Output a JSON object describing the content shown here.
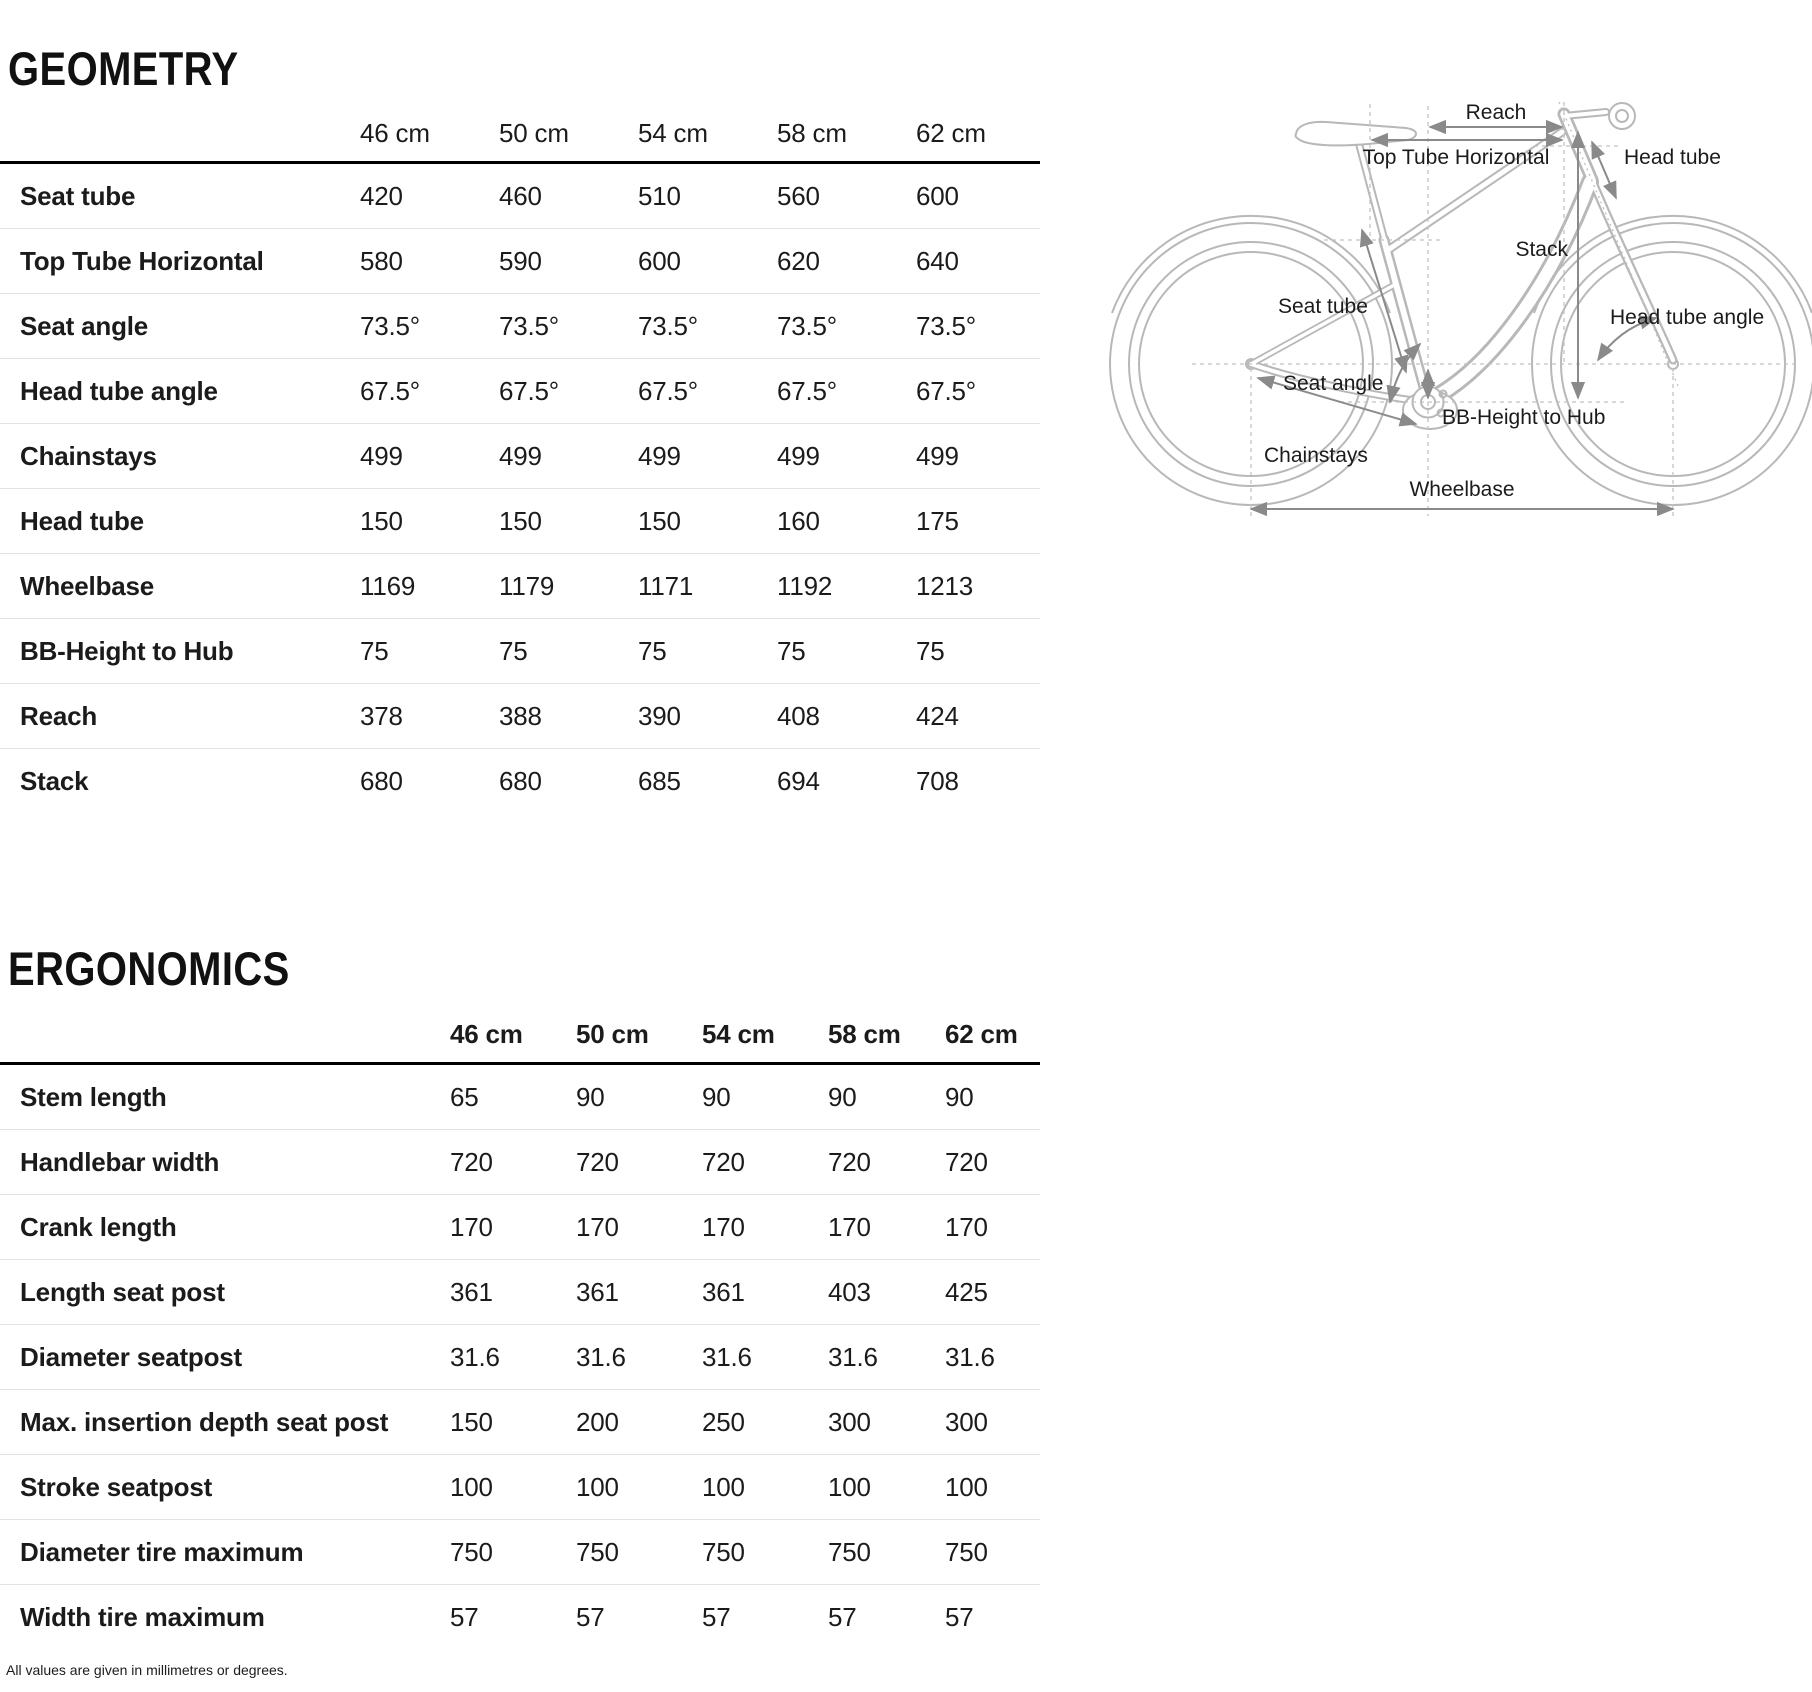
{
  "page": {
    "footnote": "All values are given in millimetres or degrees."
  },
  "geometry": {
    "title": "GEOMETRY",
    "columns": [
      "46 cm",
      "50 cm",
      "54 cm",
      "58 cm",
      "62 cm"
    ],
    "rows": [
      {
        "label": "Seat tube",
        "values": [
          "420",
          "460",
          "510",
          "560",
          "600"
        ]
      },
      {
        "label": "Top Tube Horizontal",
        "values": [
          "580",
          "590",
          "600",
          "620",
          "640"
        ]
      },
      {
        "label": "Seat angle",
        "values": [
          "73.5°",
          "73.5°",
          "73.5°",
          "73.5°",
          "73.5°"
        ]
      },
      {
        "label": "Head tube angle",
        "values": [
          "67.5°",
          "67.5°",
          "67.5°",
          "67.5°",
          "67.5°"
        ]
      },
      {
        "label": "Chainstays",
        "values": [
          "499",
          "499",
          "499",
          "499",
          "499"
        ]
      },
      {
        "label": "Head tube",
        "values": [
          "150",
          "150",
          "150",
          "160",
          "175"
        ]
      },
      {
        "label": "Wheelbase",
        "values": [
          "1169",
          "1179",
          "1171",
          "1192",
          "1213"
        ]
      },
      {
        "label": "BB-Height to Hub",
        "values": [
          "75",
          "75",
          "75",
          "75",
          "75"
        ]
      },
      {
        "label": "Reach",
        "values": [
          "378",
          "388",
          "390",
          "408",
          "424"
        ]
      },
      {
        "label": "Stack",
        "values": [
          "680",
          "680",
          "685",
          "694",
          "708"
        ]
      }
    ]
  },
  "ergonomics": {
    "title": "ERGONOMICS",
    "columns": [
      "46 cm",
      "50 cm",
      "54 cm",
      "58 cm",
      "62 cm"
    ],
    "rows": [
      {
        "label": "Stem length",
        "values": [
          "65",
          "90",
          "90",
          "90",
          "90"
        ]
      },
      {
        "label": "Handlebar width",
        "values": [
          "720",
          "720",
          "720",
          "720",
          "720"
        ]
      },
      {
        "label": "Crank length",
        "values": [
          "170",
          "170",
          "170",
          "170",
          "170"
        ]
      },
      {
        "label": "Length seat post",
        "values": [
          "361",
          "361",
          "361",
          "403",
          "425"
        ]
      },
      {
        "label": "Diameter seatpost",
        "values": [
          "31.6",
          "31.6",
          "31.6",
          "31.6",
          "31.6"
        ]
      },
      {
        "label": "Max. insertion depth seat post",
        "values": [
          "150",
          "200",
          "250",
          "300",
          "300"
        ]
      },
      {
        "label": "Stroke seatpost",
        "values": [
          "100",
          "100",
          "100",
          "100",
          "100"
        ]
      },
      {
        "label": "Diameter tire maximum",
        "values": [
          "750",
          "750",
          "750",
          "750",
          "750"
        ]
      },
      {
        "label": "Width tire maximum",
        "values": [
          "57",
          "57",
          "57",
          "57",
          "57"
        ]
      }
    ]
  },
  "diagram": {
    "labels": {
      "reach": "Reach",
      "top_tube_horizontal": "Top Tube Horizontal",
      "head_tube": "Head tube",
      "seat_tube": "Seat tube",
      "stack": "Stack",
      "seat_angle": "Seat angle",
      "head_tube_angle": "Head tube angle",
      "bb_height_to_hub": "BB-Height to Hub",
      "chainstays": "Chainstays",
      "wheelbase": "Wheelbase"
    },
    "colors": {
      "outline": "#b8b8b8",
      "arrow": "#8a8a8a",
      "dashed": "#c2c2c2",
      "label": "#1b1b1b"
    }
  }
}
